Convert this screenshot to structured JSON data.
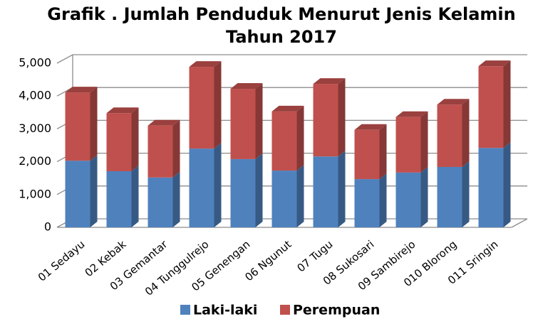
{
  "chart_data": {
    "type": "bar3d_stacked",
    "title": "Grafik . Jumlah Penduduk Menurut Jenis Kelamin Tahun 2017",
    "categories": [
      "01 Sedayu",
      "02 Kebak",
      "03 Gemantar",
      "04 Tunggulrejo",
      "05 Genengan",
      "06 Ngunut",
      "07 Tugu",
      "08 Sukosari",
      "09 Sambirejo",
      "010 Blorong",
      "011 Sringin"
    ],
    "series": [
      {
        "name": "Laki-laki",
        "color": "#4f81bd",
        "values": [
          2030,
          1710,
          1520,
          2400,
          2080,
          1730,
          2160,
          1470,
          1670,
          1840,
          2420
        ]
      },
      {
        "name": "Perempuan",
        "color": "#c0504d",
        "values": [
          2080,
          1770,
          1580,
          2490,
          2140,
          1800,
          2210,
          1500,
          1690,
          1900,
          2490
        ]
      }
    ],
    "ylim": [
      0,
      5000
    ],
    "yticks": [
      0,
      {
        "value": 1000,
        "label": "1,000"
      },
      {
        "value": 2000,
        "label": "2,000"
      },
      {
        "value": 3000,
        "label": "3,000"
      },
      {
        "value": 4000,
        "label": "4,000"
      },
      {
        "value": 5000,
        "label": "5,000"
      }
    ],
    "grid": true,
    "legend": "bottom"
  }
}
